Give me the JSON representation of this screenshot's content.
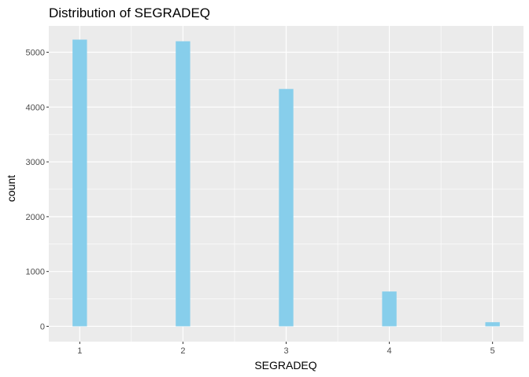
{
  "chart_data": {
    "type": "bar",
    "title": "Distribution of SEGRADEQ",
    "xlabel": "SEGRADEQ",
    "ylabel": "count",
    "categories": [
      "1",
      "2",
      "3",
      "4",
      "5"
    ],
    "x": [
      1,
      2,
      3,
      4,
      5
    ],
    "values": [
      5230,
      5200,
      4330,
      635,
      75
    ],
    "xlim": [
      0.7,
      5.3
    ],
    "ylim": [
      -280,
      5480
    ],
    "yticks": [
      0,
      1000,
      2000,
      3000,
      4000,
      5000
    ],
    "xticks": [
      1,
      2,
      3,
      4,
      5
    ],
    "grid": true,
    "legend": "none",
    "bar_color": "#87CEEB",
    "panel_color": "#EBEBEB",
    "grid_color": "#FFFFFF"
  }
}
